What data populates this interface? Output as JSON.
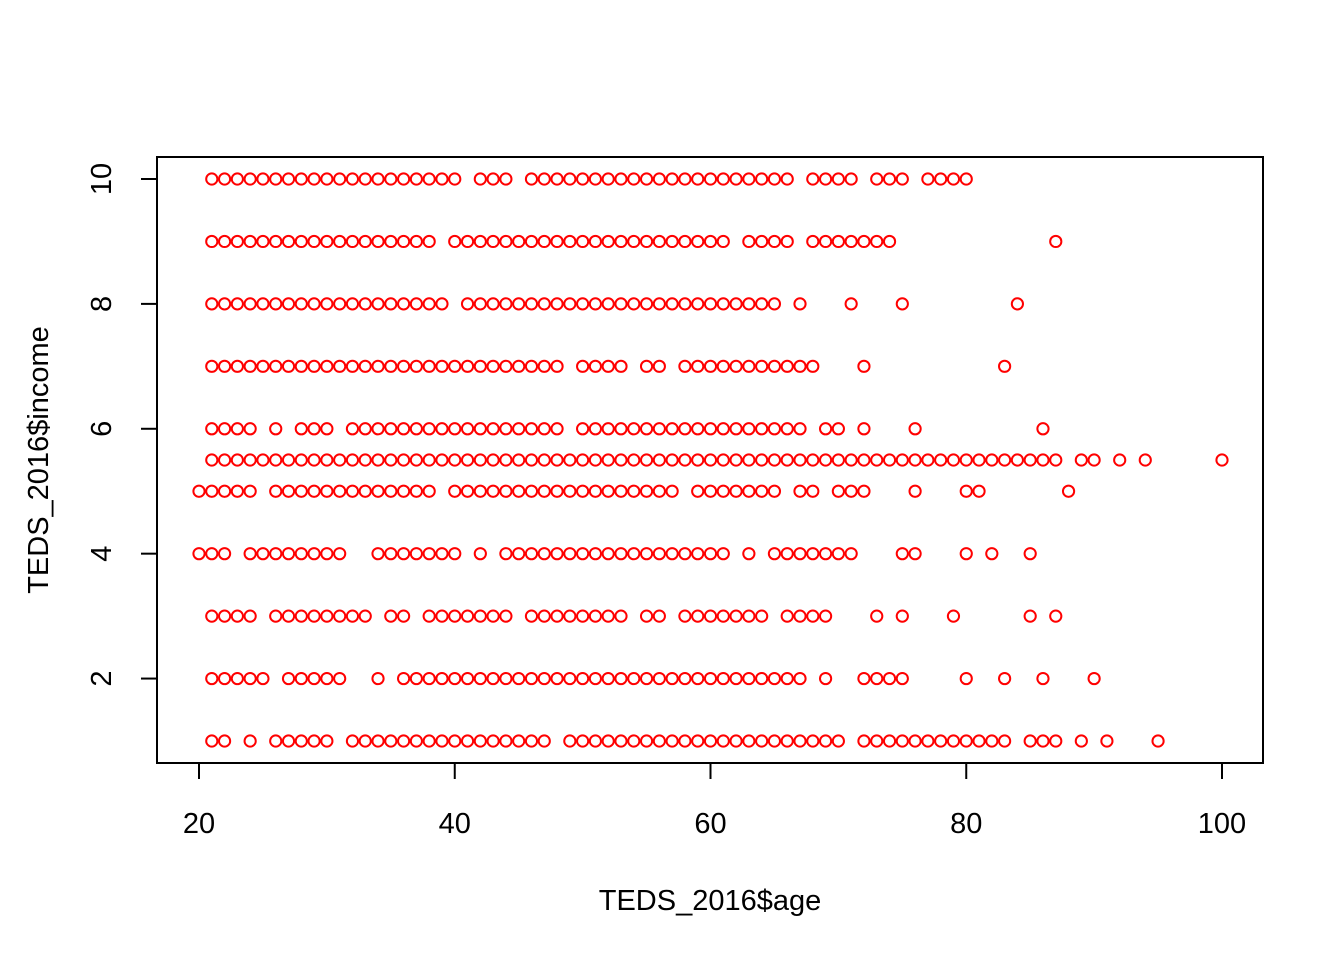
{
  "chart_data": {
    "type": "scatter",
    "title": "",
    "xlabel": "TEDS_2016$age",
    "ylabel": "TEDS_2016$income",
    "xlim": [
      20,
      100
    ],
    "ylim": [
      1,
      10
    ],
    "x_ticks": [
      "20",
      "40",
      "60",
      "80",
      "100"
    ],
    "y_ticks": [
      "2",
      "4",
      "6",
      "8",
      "10"
    ],
    "grid": false,
    "legend": "none",
    "marker": "open-circle",
    "point_color": "#ff0000",
    "rows": [
      {
        "y": 10,
        "x": [
          21,
          22,
          23,
          24,
          25,
          26,
          27,
          28,
          29,
          30,
          31,
          32,
          33,
          34,
          35,
          36,
          37,
          38,
          39,
          40,
          42,
          43,
          44,
          46,
          47,
          48,
          49,
          50,
          51,
          52,
          53,
          54,
          55,
          56,
          57,
          58,
          59,
          60,
          61,
          62,
          63,
          64,
          65,
          66,
          68,
          69,
          70,
          71,
          73,
          74,
          75,
          77,
          78,
          79,
          80
        ]
      },
      {
        "y": 9,
        "x": [
          21,
          22,
          23,
          24,
          25,
          26,
          27,
          28,
          29,
          30,
          31,
          32,
          33,
          34,
          35,
          36,
          37,
          38,
          40,
          41,
          42,
          43,
          44,
          45,
          46,
          47,
          48,
          49,
          50,
          51,
          52,
          53,
          54,
          55,
          56,
          57,
          58,
          59,
          60,
          61,
          63,
          64,
          65,
          66,
          68,
          69,
          70,
          71,
          72,
          73,
          74,
          87
        ]
      },
      {
        "y": 8,
        "x": [
          21,
          22,
          23,
          24,
          25,
          26,
          27,
          28,
          29,
          30,
          31,
          32,
          33,
          34,
          35,
          36,
          37,
          38,
          39,
          41,
          42,
          43,
          44,
          45,
          46,
          47,
          48,
          49,
          50,
          51,
          52,
          53,
          54,
          55,
          56,
          57,
          58,
          59,
          60,
          61,
          62,
          63,
          64,
          65,
          67,
          71,
          75,
          84
        ]
      },
      {
        "y": 7,
        "x": [
          21,
          22,
          23,
          24,
          25,
          26,
          27,
          28,
          29,
          30,
          31,
          32,
          33,
          34,
          35,
          36,
          37,
          38,
          39,
          40,
          41,
          42,
          43,
          44,
          45,
          46,
          47,
          48,
          50,
          51,
          52,
          53,
          55,
          56,
          58,
          59,
          60,
          61,
          62,
          63,
          64,
          65,
          66,
          67,
          68,
          72,
          83
        ]
      },
      {
        "y": 6,
        "x": [
          21,
          22,
          23,
          24,
          26,
          28,
          29,
          30,
          32,
          33,
          34,
          35,
          36,
          37,
          38,
          39,
          40,
          41,
          42,
          43,
          44,
          45,
          46,
          47,
          48,
          50,
          51,
          52,
          53,
          54,
          55,
          56,
          57,
          58,
          59,
          60,
          61,
          62,
          63,
          64,
          65,
          66,
          67,
          69,
          70,
          72,
          76,
          86
        ]
      },
      {
        "y": 5.5,
        "x": [
          21,
          22,
          23,
          24,
          25,
          26,
          27,
          28,
          29,
          30,
          31,
          32,
          33,
          34,
          35,
          36,
          37,
          38,
          39,
          40,
          41,
          42,
          43,
          44,
          45,
          46,
          47,
          48,
          49,
          50,
          51,
          52,
          53,
          54,
          55,
          56,
          57,
          58,
          59,
          60,
          61,
          62,
          63,
          64,
          65,
          66,
          67,
          68,
          69,
          70,
          71,
          72,
          73,
          74,
          75,
          76,
          77,
          78,
          79,
          80,
          81,
          82,
          83,
          84,
          85,
          86,
          87,
          89,
          90,
          92,
          94,
          100
        ]
      },
      {
        "y": 5,
        "x": [
          20,
          21,
          22,
          23,
          24,
          26,
          27,
          28,
          29,
          30,
          31,
          32,
          33,
          34,
          35,
          36,
          37,
          38,
          40,
          41,
          42,
          43,
          44,
          45,
          46,
          47,
          48,
          49,
          50,
          51,
          52,
          53,
          54,
          55,
          56,
          57,
          59,
          60,
          61,
          62,
          63,
          64,
          65,
          67,
          68,
          70,
          71,
          72,
          76,
          80,
          81,
          88
        ]
      },
      {
        "y": 4,
        "x": [
          20,
          21,
          22,
          24,
          25,
          26,
          27,
          28,
          29,
          30,
          31,
          34,
          35,
          36,
          37,
          38,
          39,
          40,
          42,
          44,
          45,
          46,
          47,
          48,
          49,
          50,
          51,
          52,
          53,
          54,
          55,
          56,
          57,
          58,
          59,
          60,
          61,
          63,
          65,
          66,
          67,
          68,
          69,
          70,
          71,
          75,
          76,
          80,
          82,
          85
        ]
      },
      {
        "y": 3,
        "x": [
          21,
          22,
          23,
          24,
          26,
          27,
          28,
          29,
          30,
          31,
          32,
          33,
          35,
          36,
          38,
          39,
          40,
          41,
          42,
          43,
          44,
          46,
          47,
          48,
          49,
          50,
          51,
          52,
          53,
          55,
          56,
          58,
          59,
          60,
          61,
          62,
          63,
          64,
          66,
          67,
          68,
          69,
          73,
          75,
          79,
          85,
          87
        ]
      },
      {
        "y": 2,
        "x": [
          21,
          22,
          23,
          24,
          25,
          27,
          28,
          29,
          30,
          31,
          34,
          36,
          37,
          38,
          39,
          40,
          41,
          42,
          43,
          44,
          45,
          46,
          47,
          48,
          49,
          50,
          51,
          52,
          53,
          54,
          55,
          56,
          57,
          58,
          59,
          60,
          61,
          62,
          63,
          64,
          65,
          66,
          67,
          69,
          72,
          73,
          74,
          75,
          80,
          83,
          86,
          90
        ]
      },
      {
        "y": 1,
        "x": [
          21,
          22,
          24,
          26,
          27,
          28,
          29,
          30,
          32,
          33,
          34,
          35,
          36,
          37,
          38,
          39,
          40,
          41,
          42,
          43,
          44,
          45,
          46,
          47,
          49,
          50,
          51,
          52,
          53,
          54,
          55,
          56,
          57,
          58,
          59,
          60,
          61,
          62,
          63,
          64,
          65,
          66,
          67,
          68,
          69,
          70,
          72,
          73,
          74,
          75,
          76,
          77,
          78,
          79,
          80,
          81,
          82,
          83,
          85,
          86,
          87,
          89,
          91,
          95
        ]
      }
    ]
  }
}
